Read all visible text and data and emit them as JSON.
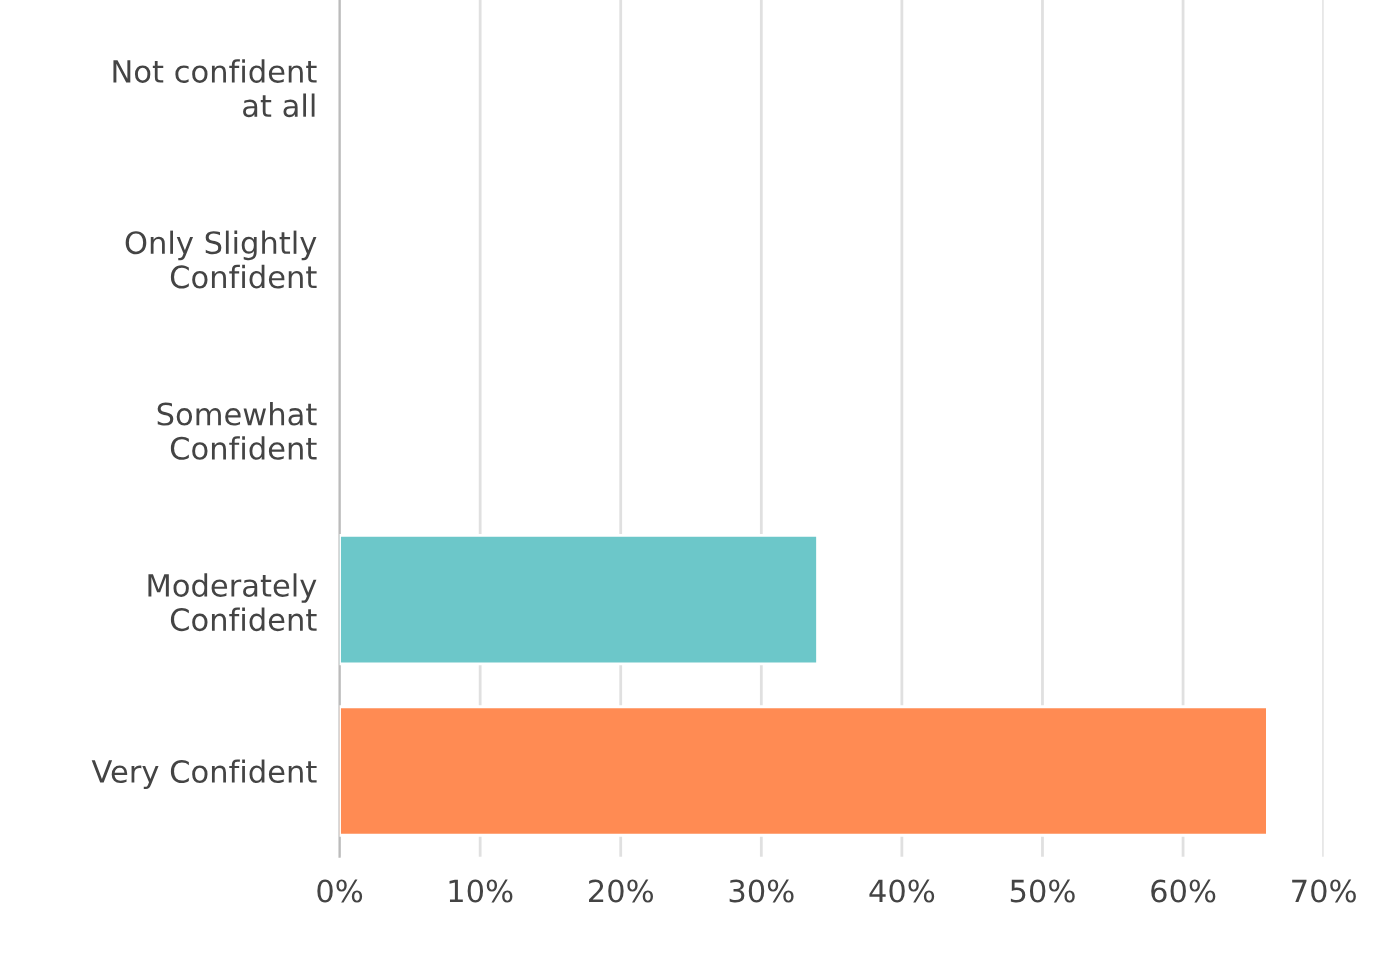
{
  "chart_data": {
    "type": "bar",
    "orientation": "horizontal",
    "categories": [
      "Not confident\nat all",
      "Only Slightly\nConfident",
      "Somewhat\nConfident",
      "Moderately\nConfident",
      "Very Confident"
    ],
    "values": [
      0,
      0,
      0,
      34,
      66
    ],
    "colors": [
      null,
      null,
      null,
      "#6cc7c9",
      "#ff8b53"
    ],
    "xlim": [
      0,
      70
    ],
    "xticks": [
      {
        "value": 0,
        "label": "0%"
      },
      {
        "value": 10,
        "label": "10%"
      },
      {
        "value": 20,
        "label": "20%"
      },
      {
        "value": 30,
        "label": "30%"
      },
      {
        "value": 40,
        "label": "40%"
      },
      {
        "value": 50,
        "label": "50%"
      },
      {
        "value": 60,
        "label": "60%"
      },
      {
        "value": 70,
        "label": "70%"
      }
    ],
    "grid": "x"
  }
}
